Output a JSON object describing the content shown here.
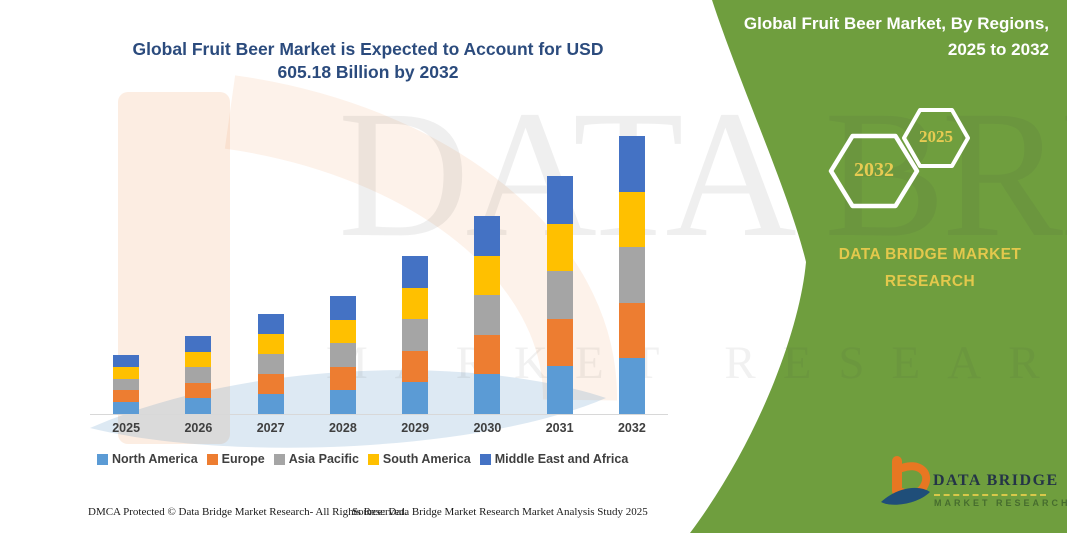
{
  "theme": {
    "panel_green": "#6F9E3E",
    "gold_text": "#E3C84C",
    "title_blue": "#2B4B7D",
    "label_gray": "#3F3F3F",
    "axis_gray": "#D8D8D8"
  },
  "title": {
    "line1": "Global Fruit Beer Market is Expected to Account for USD",
    "line2": "605.18 Billion by 2032"
  },
  "side_panel": {
    "title_line1": "Global Fruit Beer Market, By Regions,",
    "title_line2": "2025 to 2032",
    "hexagon_back_label": "2032",
    "hexagon_front_label": "2025",
    "brand_line1": "DATA BRIDGE MARKET",
    "brand_line2": "RESEARCH"
  },
  "chart_data": {
    "type": "bar",
    "stacked": true,
    "title": "Global Fruit Beer Market, By Regions, 2025 to 2032",
    "unit": "USD Billion",
    "categories": [
      "2025",
      "2026",
      "2027",
      "2028",
      "2029",
      "2030",
      "2031",
      "2032"
    ],
    "series": [
      {
        "name": "North America",
        "color": "#5B9BD5",
        "values": [
          25.7,
          34.0,
          43.5,
          51.4,
          68.8,
          86.2,
          103.6,
          121.04
        ]
      },
      {
        "name": "Europe",
        "color": "#ED7D31",
        "values": [
          25.7,
          34.0,
          43.5,
          51.4,
          68.8,
          86.2,
          103.6,
          121.04
        ]
      },
      {
        "name": "Asia Pacific",
        "color": "#A5A5A5",
        "values": [
          25.7,
          34.0,
          43.5,
          51.4,
          68.8,
          86.2,
          103.6,
          121.04
        ]
      },
      {
        "name": "South America",
        "color": "#FFC000",
        "values": [
          25.7,
          34.0,
          43.5,
          51.4,
          68.8,
          86.2,
          103.6,
          121.04
        ]
      },
      {
        "name": "Middle East and Africa",
        "color": "#4472C4",
        "values": [
          25.7,
          34.0,
          43.5,
          51.4,
          68.8,
          86.2,
          103.6,
          121.04
        ]
      }
    ],
    "totals": [
      128.5,
      170.0,
      217.5,
      257.0,
      344.0,
      431.0,
      518.0,
      605.18
    ],
    "highlight_total_2032": "605.18",
    "ylim": [
      0,
      650
    ],
    "grid": false,
    "legend_position": "bottom"
  },
  "watermarks": {
    "big_text": "DATA BRIDGE",
    "row_text": "MARKET RESEARCH"
  },
  "logo": {
    "name": "DATA BRIDGE",
    "subtitle": "MARKET RESEARCH"
  },
  "footer": {
    "left": "DMCA Protected © Data Bridge Market Research-  All Rights Reserved.",
    "right": "Source: Data Bridge Market Research  Market Analysis Study 2025"
  }
}
